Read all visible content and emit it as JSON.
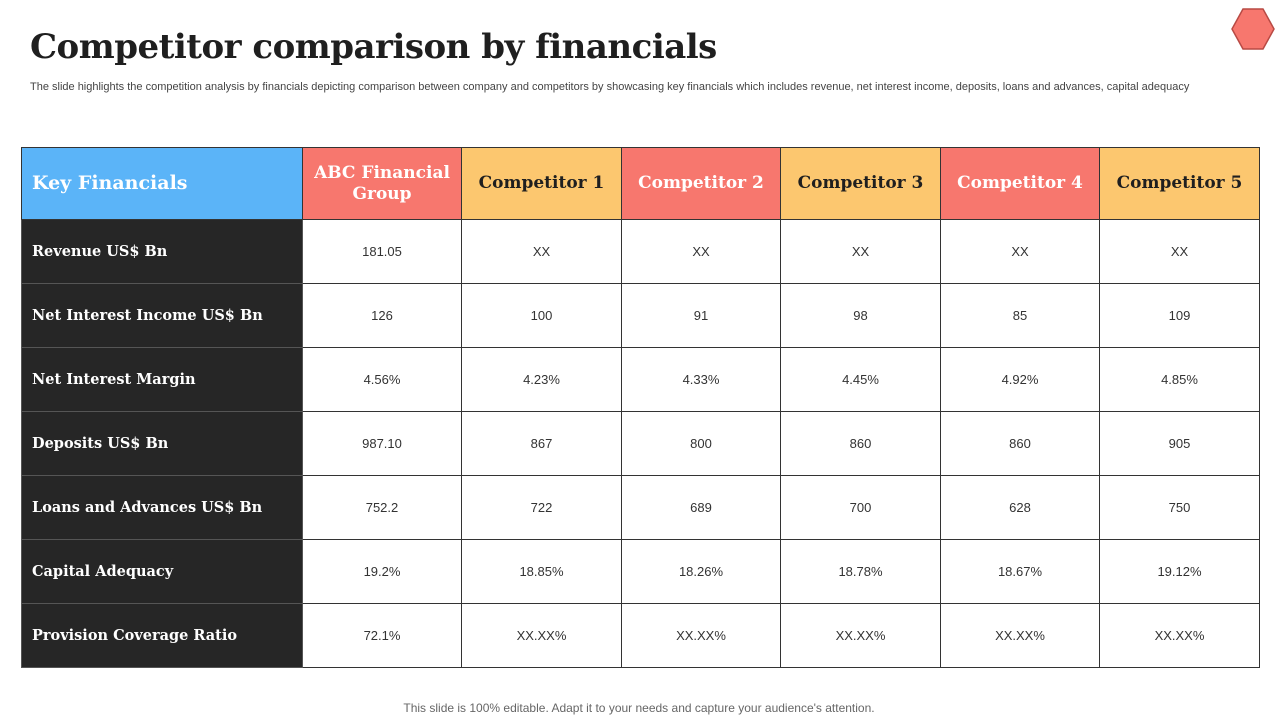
{
  "slide": {
    "title": "Competitor comparison by financials",
    "subtitle": "The slide highlights the competition analysis by financials depicting comparison between company and competitors by showcasing key financials which includes revenue, net interest income, deposits, loans and advances, capital adequacy",
    "footer": "This slide is 100% editable. Adapt it to your needs and capture your audience's attention."
  },
  "colors": {
    "key_header": "#5bb4f8",
    "red_header": "#f7776e",
    "orange_header": "#fcc76f",
    "row_label_bg": "#262626",
    "hexagon_fill": "#f7776e"
  },
  "icons": {
    "top_right": "hexagon-icon"
  },
  "table": {
    "headers": [
      "Key Financials",
      "ABC Financial Group",
      "Competitor 1",
      "Competitor 2",
      "Competitor 3",
      "Competitor 4",
      "Competitor 5"
    ],
    "rows": [
      {
        "label": "Revenue US$ Bn",
        "values": [
          "181.05",
          "XX",
          "XX",
          "XX",
          "XX",
          "XX"
        ]
      },
      {
        "label": "Net Interest Income US$ Bn",
        "values": [
          "126",
          "100",
          "91",
          "98",
          "85",
          "109"
        ]
      },
      {
        "label": "Net Interest Margin",
        "values": [
          "4.56%",
          "4.23%",
          "4.33%",
          "4.45%",
          "4.92%",
          "4.85%"
        ]
      },
      {
        "label": "Deposits US$ Bn",
        "values": [
          "987.10",
          "867",
          "800",
          "860",
          "860",
          "905"
        ]
      },
      {
        "label": "Loans and Advances US$ Bn",
        "values": [
          "752.2",
          "722",
          "689",
          "700",
          "628",
          "750"
        ]
      },
      {
        "label": "Capital Adequacy",
        "values": [
          "19.2%",
          "18.85%",
          "18.26%",
          "18.78%",
          "18.67%",
          "19.12%"
        ]
      },
      {
        "label": "Provision Coverage Ratio",
        "values": [
          "72.1%",
          "XX.XX%",
          "XX.XX%",
          "XX.XX%",
          "XX.XX%",
          "XX.XX%"
        ]
      }
    ]
  }
}
